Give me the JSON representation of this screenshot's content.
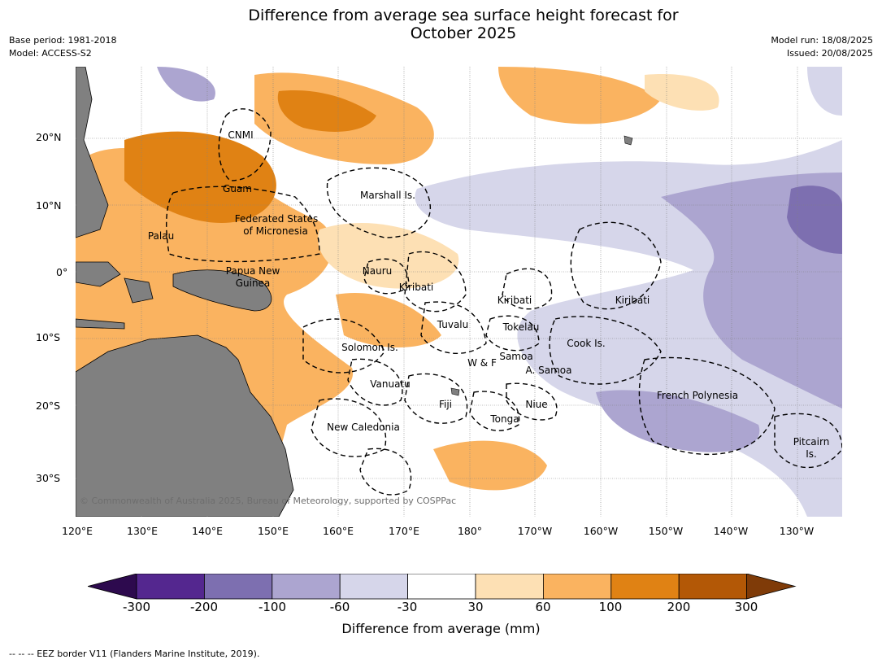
{
  "title_line1": "Difference from average sea surface height forecast for",
  "title_line2": "October 2025",
  "meta_left": [
    "Base period: 1981-2018",
    "Model: ACCESS-S2"
  ],
  "meta_right": [
    "Model run: 18/08/2025",
    "Issued: 20/08/2025"
  ],
  "lat_labels": [
    "20°N",
    "10°N",
    "0°",
    "10°S",
    "20°S",
    "30°S"
  ],
  "lon_labels": [
    "120°E",
    "130°E",
    "140°E",
    "150°E",
    "160°E",
    "170°E",
    "180°",
    "170°W",
    "160°W",
    "150°W",
    "140°W",
    "130°W"
  ],
  "places": [
    "CNMI",
    "Guam",
    "Marshall Is.",
    "Federated States",
    "of Micronesia",
    "Palau",
    "Papua New",
    "Guinea",
    "Nauru",
    "Kiribati",
    "Kiribati",
    "Kiribati",
    "Tuvalu",
    "Tokelau",
    "Solomon Is.",
    "Cook Is.",
    "Samoa",
    "W & F",
    "A. Samoa",
    "Vanuatu",
    "Fiji",
    "Niue",
    "French Polynesia",
    "Tonga",
    "New Caledonia",
    "Pitcairn",
    "Is."
  ],
  "credit": "© Commonwealth of Australia 2025, Bureau of Meteorology, supported by COSPPac",
  "colorbar": {
    "label": "Difference from average (mm)",
    "ticks": [
      "-300",
      "-200",
      "-100",
      "-60",
      "-30",
      "30",
      "60",
      "100",
      "200",
      "300"
    ],
    "colors": [
      "#2d0a4e",
      "#54278f",
      "#7d6fb0",
      "#aca5d0",
      "#d6d6ea",
      "#ffffff",
      "#fde0b4",
      "#fab360",
      "#e08214",
      "#b35806",
      "#7f3b08"
    ]
  },
  "footnote": "--  --  -- EEZ border V11 (Flanders Marine Institute, 2019)."
}
